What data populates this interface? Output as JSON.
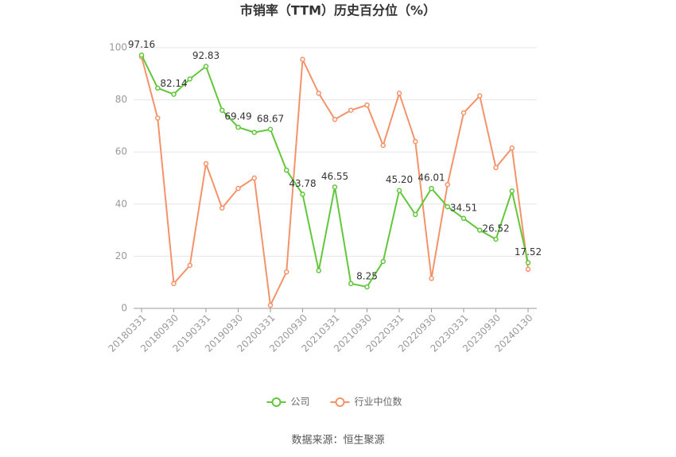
{
  "chart_data": {
    "type": "line",
    "title": "市销率（TTM）历史百分位（%）",
    "source": "数据来源：恒生聚源",
    "categories": [
      "20180331",
      null,
      "20180930",
      null,
      "20190331",
      null,
      "20190930",
      null,
      "20200331",
      null,
      "20200930",
      null,
      "20210331",
      null,
      "20210930",
      null,
      "20220331",
      null,
      "20220930",
      null,
      "20230331",
      null,
      "20230930",
      null,
      "20240130"
    ],
    "series": [
      {
        "name": "公司",
        "color": "#62c73a",
        "values": [
          97.16,
          84.5,
          82.14,
          88,
          92.83,
          76,
          69.49,
          67.5,
          68.67,
          53,
          43.78,
          14.5,
          46.55,
          9.5,
          8.25,
          18,
          45.2,
          36,
          46.01,
          39,
          34.51,
          30,
          26.52,
          45,
          17.52
        ],
        "value_labels": [
          "97.16",
          null,
          "82.14",
          null,
          "92.83",
          null,
          "69.49",
          null,
          "68.67",
          null,
          "43.78",
          null,
          "46.55",
          null,
          "8.25",
          null,
          "45.20",
          null,
          "46.01",
          null,
          "34.51",
          null,
          "26.52",
          null,
          "17.52"
        ]
      },
      {
        "name": "行业中位数",
        "color": "#f4936a",
        "values": [
          96.5,
          73,
          9.5,
          16.5,
          55.5,
          38.5,
          46,
          50,
          1.2,
          14,
          95.5,
          82.5,
          72.5,
          76,
          78,
          62.5,
          82.5,
          64,
          11.5,
          47.5,
          75,
          81.5,
          54,
          61.5,
          15
        ]
      }
    ],
    "ylim": [
      0,
      100
    ],
    "yticks": [
      0,
      20,
      40,
      60,
      80,
      100
    ],
    "grid": true,
    "legend": "bottom"
  }
}
